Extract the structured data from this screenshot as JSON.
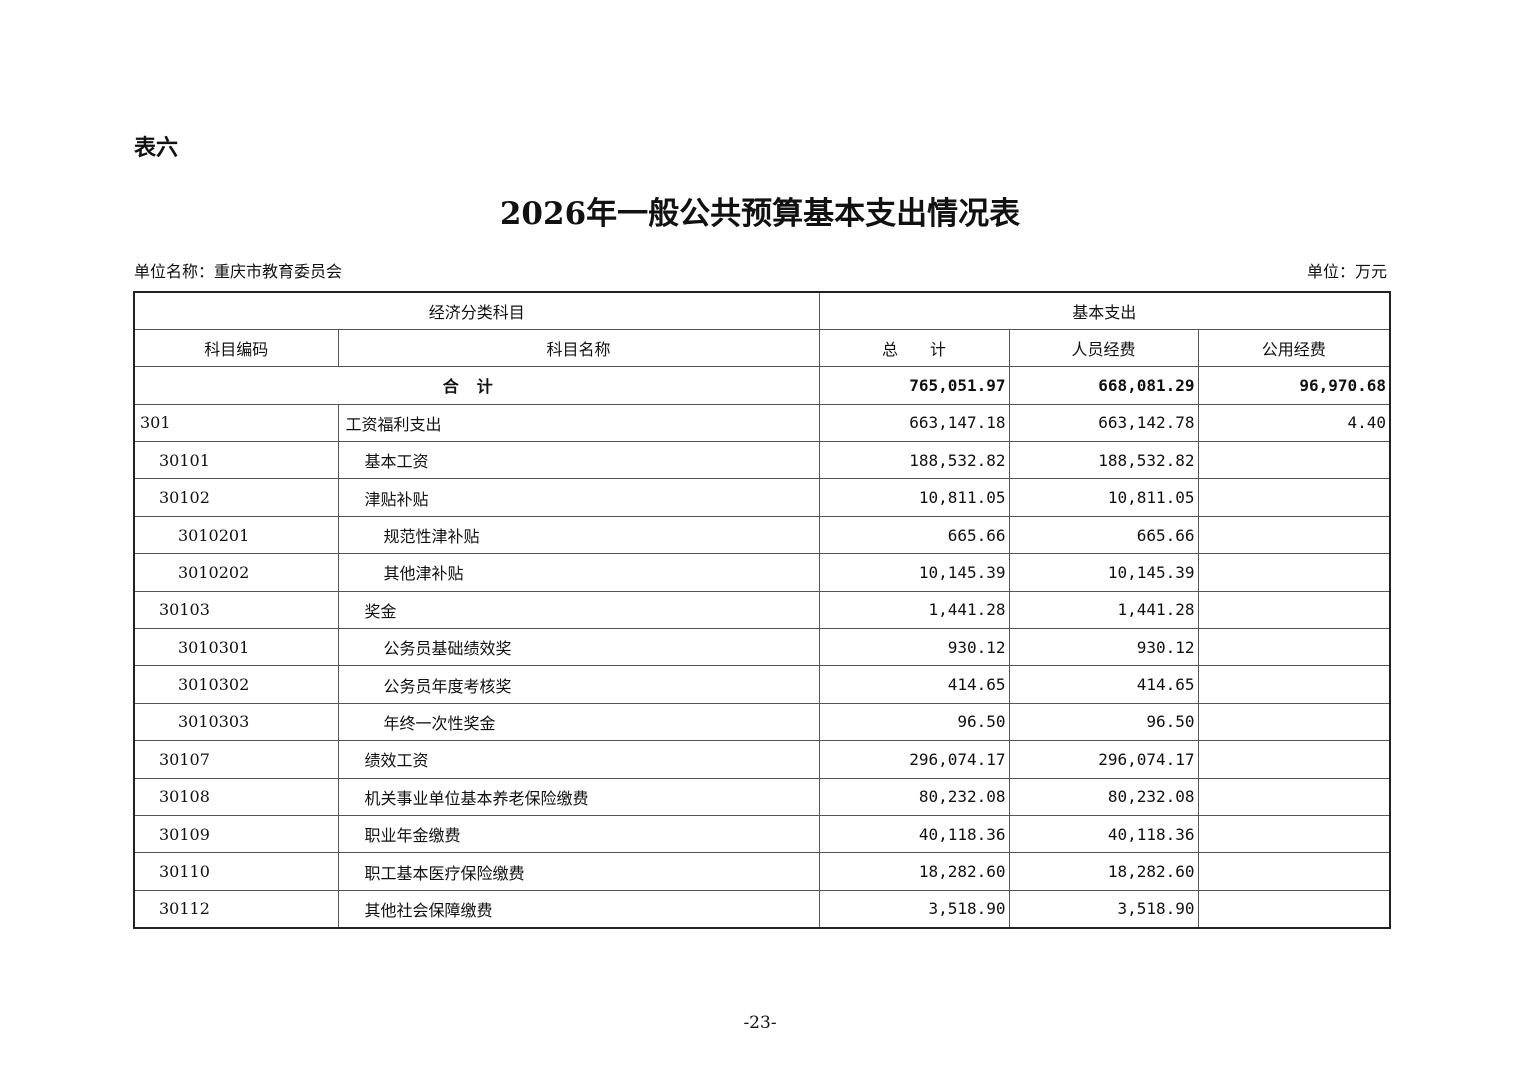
{
  "table_label": "表六",
  "title": "2026年一般公共预算基本支出情况表",
  "unit_name": "单位名称：重庆市教育委员会",
  "unit": "单位：万元",
  "headers": {
    "group1": "经济分类科目",
    "group2": "基本支出",
    "code": "科目编码",
    "name": "科目名称",
    "total": "总　　计",
    "personnel": "人员经费",
    "public": "公用经费"
  },
  "total_row": {
    "label": "合计",
    "total": "765,051.97",
    "personnel": "668,081.29",
    "public": "96,970.68"
  },
  "rows": [
    {
      "code": "301",
      "name": "工资福利支出",
      "level": 0,
      "total": "663,147.18",
      "personnel": "663,142.78",
      "public": "4.40"
    },
    {
      "code": "30101",
      "name": "基本工资",
      "level": 1,
      "total": "188,532.82",
      "personnel": "188,532.82",
      "public": ""
    },
    {
      "code": "30102",
      "name": "津贴补贴",
      "level": 1,
      "total": "10,811.05",
      "personnel": "10,811.05",
      "public": ""
    },
    {
      "code": "3010201",
      "name": "规范性津补贴",
      "level": 2,
      "total": "665.66",
      "personnel": "665.66",
      "public": ""
    },
    {
      "code": "3010202",
      "name": "其他津补贴",
      "level": 2,
      "total": "10,145.39",
      "personnel": "10,145.39",
      "public": ""
    },
    {
      "code": "30103",
      "name": "奖金",
      "level": 1,
      "total": "1,441.28",
      "personnel": "1,441.28",
      "public": ""
    },
    {
      "code": "3010301",
      "name": "公务员基础绩效奖",
      "level": 2,
      "total": "930.12",
      "personnel": "930.12",
      "public": ""
    },
    {
      "code": "3010302",
      "name": "公务员年度考核奖",
      "level": 2,
      "total": "414.65",
      "personnel": "414.65",
      "public": ""
    },
    {
      "code": "3010303",
      "name": "年终一次性奖金",
      "level": 2,
      "total": "96.50",
      "personnel": "96.50",
      "public": ""
    },
    {
      "code": "30107",
      "name": "绩效工资",
      "level": 1,
      "total": "296,074.17",
      "personnel": "296,074.17",
      "public": ""
    },
    {
      "code": "30108",
      "name": "机关事业单位基本养老保险缴费",
      "level": 1,
      "total": "80,232.08",
      "personnel": "80,232.08",
      "public": ""
    },
    {
      "code": "30109",
      "name": "职业年金缴费",
      "level": 1,
      "total": "40,118.36",
      "personnel": "40,118.36",
      "public": ""
    },
    {
      "code": "30110",
      "name": "职工基本医疗保险缴费",
      "level": 1,
      "total": "18,282.60",
      "personnel": "18,282.60",
      "public": ""
    },
    {
      "code": "30112",
      "name": "其他社会保障缴费",
      "level": 1,
      "total": "3,518.90",
      "personnel": "3,518.90",
      "public": ""
    }
  ],
  "page_number": "-23-"
}
